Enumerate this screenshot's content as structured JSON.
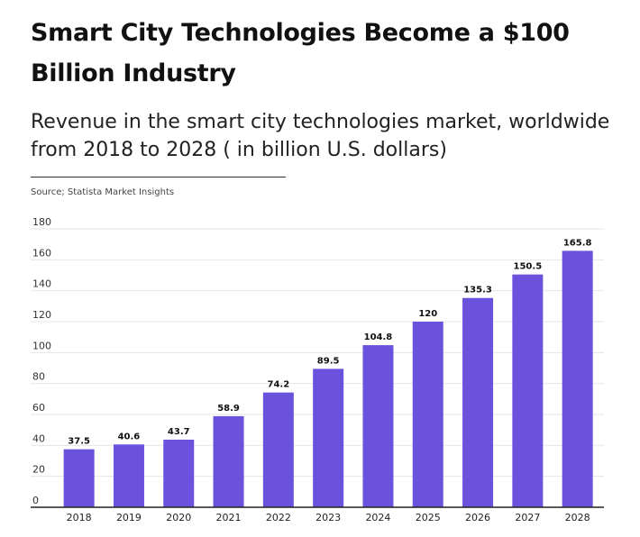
{
  "header": {
    "title": "Smart City Technologies Become a $100 Billion Industry",
    "subtitle": "Revenue in the smart city technologies market, worldwide from 2018 to 2028 ( in billion U.S. dollars)",
    "source": "Source; Statista Market Insights"
  },
  "colors": {
    "bar": "#6b52dd",
    "grid": "#e6e6e6",
    "axis": "#222222"
  },
  "chart_data": {
    "type": "bar",
    "title": "Smart City Technologies Become a $100 Billion Industry",
    "subtitle": "Revenue in the smart city technologies market, worldwide from 2018 to 2028 ( in billion U.S. dollars)",
    "categories": [
      "2018",
      "2019",
      "2020",
      "2021",
      "2022",
      "2023",
      "2024",
      "2025",
      "2026",
      "2027",
      "2028"
    ],
    "values": [
      37.5,
      40.6,
      43.7,
      58.9,
      74.2,
      89.5,
      104.8,
      120,
      135.3,
      150.5,
      165.8
    ],
    "data_labels": [
      "37.5",
      "40.6",
      "43.7",
      "58.9",
      "74.2",
      "89.5",
      "104.8",
      "120",
      "135.3",
      "150.5",
      "165.8"
    ],
    "yticks": [
      0,
      20,
      40,
      60,
      80,
      100,
      120,
      140,
      160,
      180
    ],
    "ylim": [
      0,
      180
    ],
    "xlabel": "",
    "ylabel": "",
    "grid": true,
    "legend": "none"
  }
}
